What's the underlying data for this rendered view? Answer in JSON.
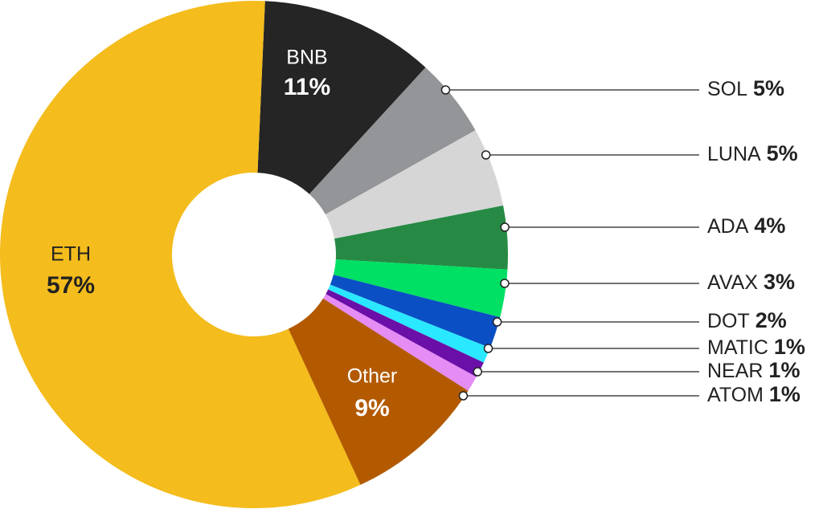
{
  "chart_data": {
    "type": "donut",
    "categories": [
      "BNB",
      "SOL",
      "LUNA",
      "ADA",
      "AVAX",
      "DOT",
      "MATIC",
      "NEAR",
      "ATOM",
      "Other",
      "ETH"
    ],
    "values": [
      11,
      5,
      5,
      4,
      3,
      2,
      1,
      1,
      1,
      9,
      57
    ],
    "value_labels": [
      "11%",
      "5%",
      "5%",
      "4%",
      "3%",
      "2%",
      "1%",
      "1%",
      "1%",
      "9%",
      "57%"
    ],
    "colors": [
      "#252525",
      "#939598",
      "#d6d6d6",
      "#268a45",
      "#00e064",
      "#0a4fc4",
      "#2ae8ff",
      "#6a0fa8",
      "#e58cf5",
      "#b35a00",
      "#f4bc1c"
    ]
  }
}
